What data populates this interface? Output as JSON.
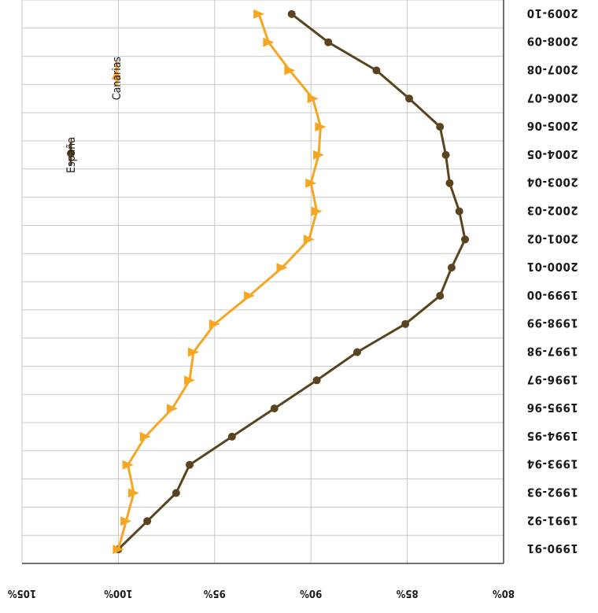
{
  "chart_data": {
    "type": "line",
    "orientation": "rotated 180 degrees (categories along the right edge, values along the bottom edge)",
    "categories": [
      "1990-91",
      "1991-92",
      "1992-93",
      "1993-94",
      "1994-95",
      "1995-96",
      "1996-97",
      "1997-98",
      "1998-99",
      "1999-00",
      "2000-01",
      "2001-02",
      "2002-03",
      "2003-04",
      "2004-05",
      "2005-06",
      "2006-07",
      "2007-08",
      "2008-09",
      "2009-10"
    ],
    "series": [
      {
        "name": "España",
        "color": "#5a4420",
        "marker": "circle",
        "values": [
          100.0,
          98.5,
          97.0,
          96.3,
          94.1,
          91.9,
          89.7,
          87.6,
          85.1,
          83.3,
          82.7,
          82.0,
          82.3,
          82.8,
          83.0,
          83.3,
          84.9,
          86.6,
          89.1,
          91.0
        ]
      },
      {
        "name": "Canarias",
        "color": "#f5a623",
        "marker": "triangle",
        "values": [
          100.0,
          99.6,
          99.2,
          99.5,
          98.6,
          97.2,
          96.3,
          96.1,
          95.0,
          93.2,
          91.5,
          90.1,
          89.7,
          90.0,
          89.6,
          89.5,
          89.9,
          91.1,
          92.2,
          92.7
        ]
      }
    ],
    "ytick_labels": [
      "105%",
      "100%",
      "95%",
      "90%",
      "85%",
      "80%"
    ],
    "ylim": [
      80,
      105
    ],
    "grid": true,
    "legend": "top-left"
  }
}
